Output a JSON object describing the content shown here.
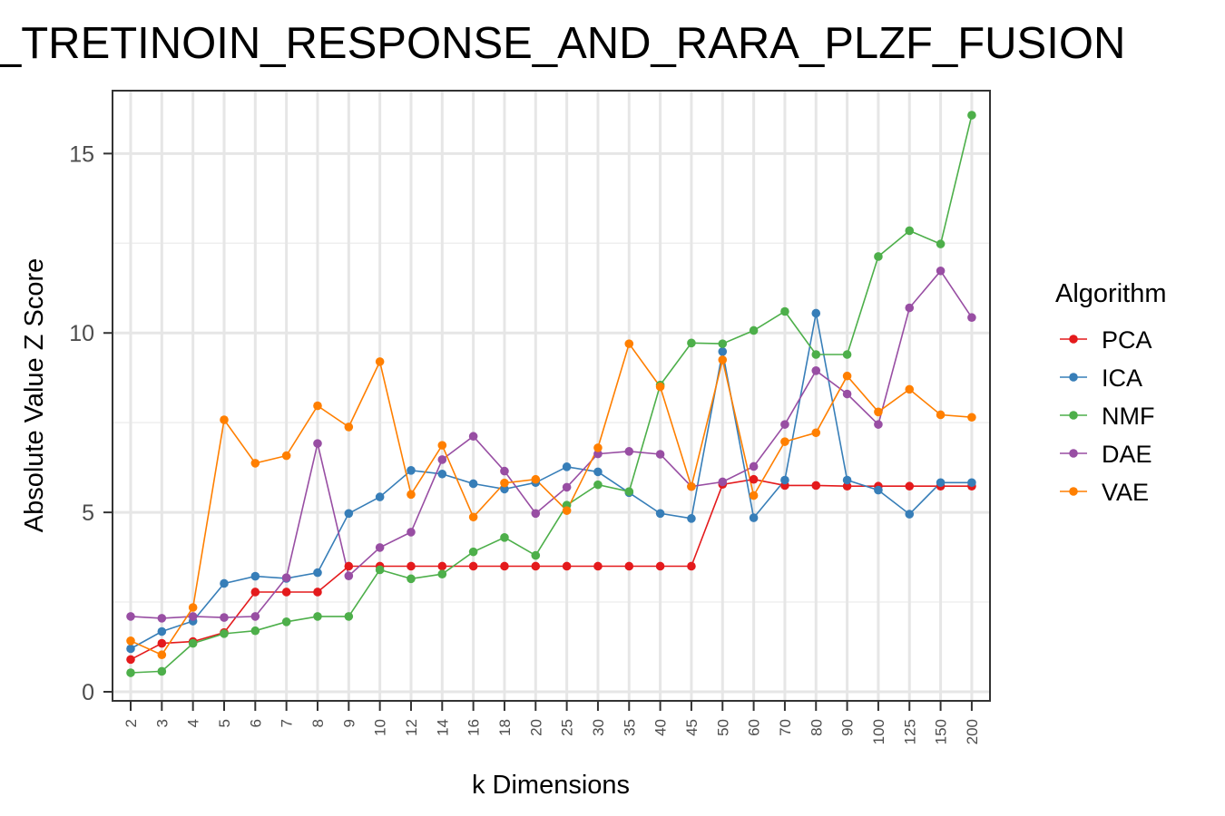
{
  "chart_data": {
    "type": "line",
    "title": "_TRETINOIN_RESPONSE_AND_RARA_PLZF_FUSION",
    "xlabel": "k Dimensions",
    "ylabel": "Absolute Value Z Score",
    "ylim": [
      0,
      16.5
    ],
    "yticks": [
      0,
      5,
      10,
      15
    ],
    "grid": true,
    "legend": {
      "title": "Algorithm",
      "position": "right"
    },
    "categories": [
      "2",
      "3",
      "4",
      "5",
      "6",
      "7",
      "8",
      "9",
      "10",
      "12",
      "14",
      "16",
      "18",
      "20",
      "25",
      "30",
      "35",
      "40",
      "45",
      "50",
      "60",
      "70",
      "80",
      "90",
      "100",
      "125",
      "150",
      "200"
    ],
    "series": [
      {
        "name": "PCA",
        "color": "#e41a1c",
        "values": [
          0.9,
          1.35,
          1.4,
          1.65,
          2.78,
          2.78,
          2.78,
          3.5,
          3.5,
          3.5,
          3.5,
          3.5,
          3.5,
          3.5,
          3.5,
          3.5,
          3.5,
          3.5,
          3.5,
          5.78,
          5.92,
          5.75,
          5.75,
          5.73,
          5.73,
          5.73,
          5.73,
          5.73
        ]
      },
      {
        "name": "ICA",
        "color": "#377eb8",
        "values": [
          1.2,
          1.68,
          1.97,
          3.02,
          3.22,
          3.16,
          3.32,
          4.97,
          5.43,
          6.17,
          6.07,
          5.8,
          5.65,
          5.83,
          6.27,
          6.13,
          5.55,
          4.97,
          4.83,
          9.48,
          4.85,
          5.9,
          10.55,
          5.9,
          5.62,
          4.95,
          5.83,
          5.83
        ]
      },
      {
        "name": "NMF",
        "color": "#4daf4a",
        "values": [
          0.53,
          0.57,
          1.35,
          1.62,
          1.7,
          1.95,
          2.1,
          2.1,
          3.4,
          3.15,
          3.28,
          3.9,
          4.3,
          3.8,
          5.2,
          5.77,
          5.58,
          8.55,
          9.72,
          9.7,
          10.07,
          10.6,
          9.4,
          9.4,
          12.13,
          12.85,
          12.48,
          16.07
        ]
      },
      {
        "name": "DAE",
        "color": "#984ea3",
        "values": [
          2.1,
          2.05,
          2.1,
          2.07,
          2.1,
          3.18,
          6.92,
          3.23,
          4.02,
          4.45,
          6.47,
          7.12,
          6.15,
          4.97,
          5.7,
          6.63,
          6.7,
          6.62,
          5.72,
          5.85,
          6.28,
          7.45,
          8.95,
          8.3,
          7.45,
          10.7,
          11.73,
          10.43
        ]
      },
      {
        "name": "VAE",
        "color": "#ff7f00",
        "values": [
          1.42,
          1.03,
          2.35,
          7.58,
          6.37,
          6.58,
          7.97,
          7.38,
          9.2,
          5.5,
          6.87,
          4.87,
          5.82,
          5.92,
          5.05,
          6.8,
          9.7,
          8.5,
          5.72,
          9.25,
          5.47,
          6.97,
          7.22,
          8.8,
          7.8,
          8.43,
          7.72,
          7.65
        ]
      }
    ]
  }
}
